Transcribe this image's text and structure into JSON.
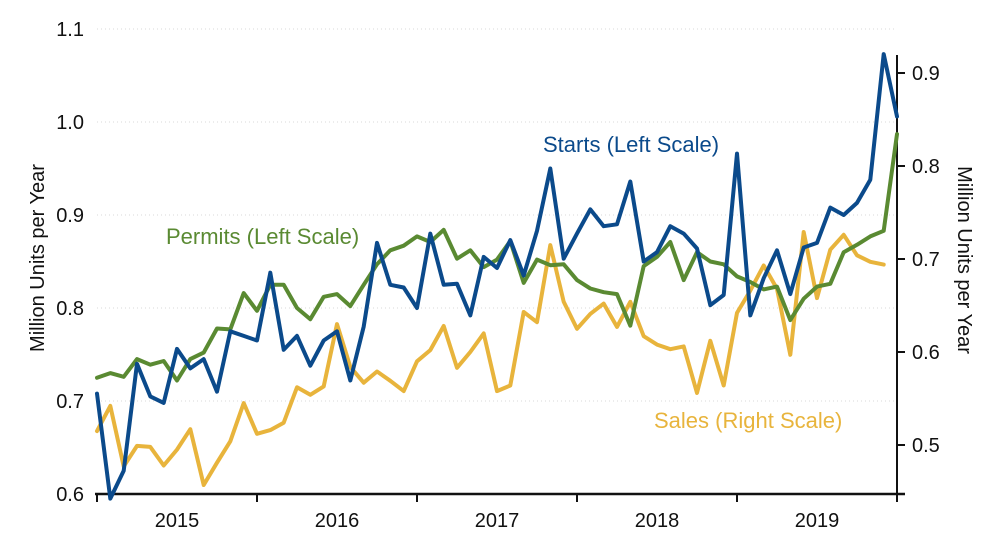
{
  "chart_data": {
    "type": "line",
    "left_axis": {
      "label": "Million Units per Year",
      "ylim": [
        0.6,
        1.1
      ],
      "ticks": [
        0.6,
        0.7,
        0.8,
        0.9,
        1.0,
        1.1
      ],
      "tick_labels": [
        "0.6",
        "0.7",
        "0.8",
        "0.9",
        "1.0",
        "1.1"
      ]
    },
    "right_axis": {
      "label": "Million Units per Year",
      "ylim": [
        0.45,
        0.95
      ],
      "ticks": [
        0.5,
        0.6,
        0.7,
        0.8,
        0.9
      ],
      "tick_labels": [
        "0.5",
        "0.6",
        "0.7",
        "0.8",
        "0.9"
      ]
    },
    "x_axis": {
      "categories": [
        "2015",
        "2016",
        "2017",
        "2018",
        "2019"
      ],
      "start_index": 0,
      "end_index": 60,
      "year_start_indices": [
        0,
        12,
        24,
        36,
        48,
        60
      ]
    },
    "grid": true,
    "series": [
      {
        "name": "Starts",
        "label": "Starts (Left Scale)",
        "axis": "left",
        "color": "#0b4a8b",
        "values": [
          0.708,
          0.595,
          0.625,
          0.74,
          0.705,
          0.698,
          0.756,
          0.735,
          0.745,
          0.71,
          0.775,
          0.77,
          0.765,
          0.838,
          0.755,
          0.77,
          0.738,
          0.765,
          0.775,
          0.722,
          0.78,
          0.87,
          0.825,
          0.822,
          0.8,
          0.88,
          0.825,
          0.826,
          0.792,
          0.855,
          0.843,
          0.873,
          0.835,
          0.883,
          0.95,
          0.853,
          0.88,
          0.906,
          0.888,
          0.89,
          0.936,
          0.85,
          0.86,
          0.888,
          0.88,
          0.864,
          0.803,
          0.814,
          0.966,
          0.792,
          0.832,
          0.862,
          0.815,
          0.865,
          0.87,
          0.908,
          0.9,
          0.913,
          0.938,
          1.073,
          1.006
        ]
      },
      {
        "name": "Permits",
        "label": "Permits (Left Scale)",
        "axis": "left",
        "color": "#5a8a32",
        "values": [
          0.725,
          0.73,
          0.726,
          0.745,
          0.739,
          0.743,
          0.722,
          0.745,
          0.752,
          0.778,
          0.777,
          0.816,
          0.797,
          0.825,
          0.825,
          0.8,
          0.788,
          0.812,
          0.815,
          0.802,
          0.825,
          0.847,
          0.862,
          0.867,
          0.877,
          0.871,
          0.884,
          0.853,
          0.862,
          0.844,
          0.852,
          0.872,
          0.827,
          0.852,
          0.846,
          0.847,
          0.83,
          0.821,
          0.817,
          0.815,
          0.781,
          0.845,
          0.855,
          0.871,
          0.83,
          0.86,
          0.85,
          0.847,
          0.834,
          0.828,
          0.82,
          0.823,
          0.787,
          0.81,
          0.823,
          0.826,
          0.86,
          0.868,
          0.877,
          0.883,
          0.987
        ]
      },
      {
        "name": "Sales",
        "label": "Sales (Right Scale)",
        "axis": "right",
        "color": "#e8b43c",
        "values": [
          0.515,
          0.542,
          0.477,
          0.499,
          0.498,
          0.478,
          0.495,
          0.517,
          0.457,
          0.481,
          0.504,
          0.545,
          0.512,
          0.516,
          0.524,
          0.562,
          0.554,
          0.563,
          0.63,
          0.584,
          0.567,
          0.579,
          0.569,
          0.558,
          0.59,
          0.602,
          0.628,
          0.583,
          0.6,
          0.62,
          0.558,
          0.564,
          0.643,
          0.632,
          0.715,
          0.654,
          0.625,
          0.641,
          0.652,
          0.627,
          0.654,
          0.617,
          0.608,
          0.603,
          0.606,
          0.556,
          0.612,
          0.564,
          0.642,
          0.666,
          0.693,
          0.668,
          0.597,
          0.729,
          0.658,
          0.71,
          0.726,
          0.704,
          0.697,
          0.694
        ]
      }
    ]
  }
}
